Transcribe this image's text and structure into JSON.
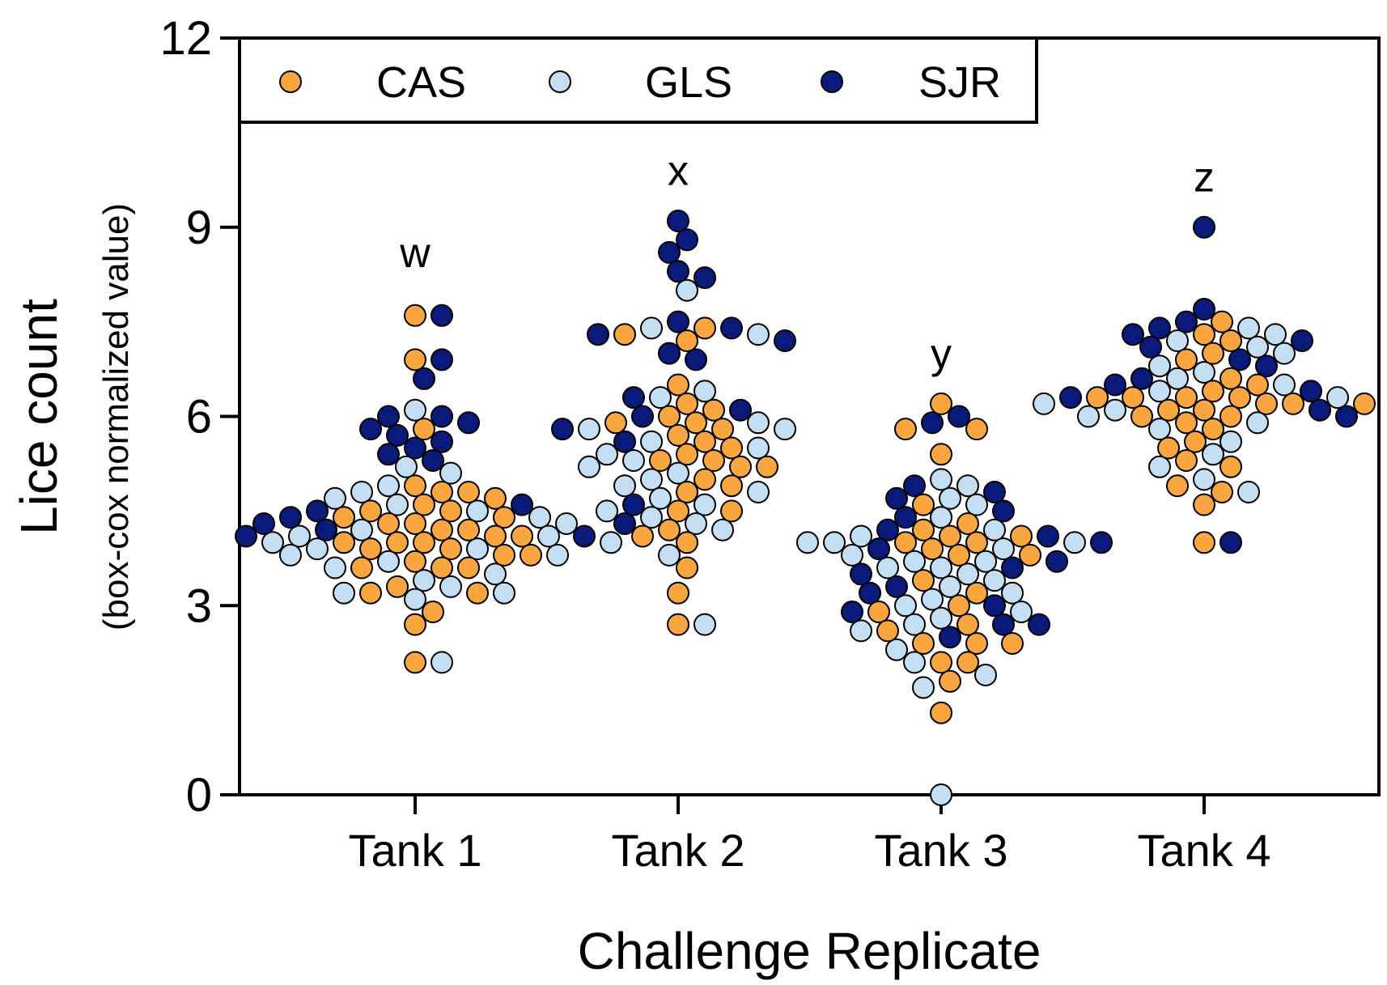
{
  "chart_data": {
    "type": "scatter",
    "subtype": "beeswarm",
    "title": "",
    "xlabel": "Challenge Replicate",
    "ylabel": "Lice count",
    "ylabel_sub": "(box-cox normalized value)",
    "ylim": [
      0,
      12
    ],
    "yticks": [
      0,
      3,
      6,
      9,
      12
    ],
    "categories": [
      "Tank 1",
      "Tank 2",
      "Tank 3",
      "Tank 4"
    ],
    "legend": {
      "placement": "top-left"
    },
    "annotations": [
      {
        "category": "Tank 1",
        "text": "w",
        "y": 8.6
      },
      {
        "category": "Tank 2",
        "text": "x",
        "y": 9.9
      },
      {
        "category": "Tank 3",
        "text": "y",
        "y": 7.0
      },
      {
        "category": "Tank 4",
        "text": "z",
        "y": 9.8
      }
    ],
    "series": [
      {
        "name": "CAS",
        "color": "#F9A640",
        "values": [
          [
            7.6,
            6.9,
            5.8,
            4.9,
            4.8,
            4.8,
            4.7,
            4.6,
            4.5,
            4.5,
            4.4,
            4.4,
            4.3,
            4.3,
            4.2,
            4.2,
            4.1,
            4.1,
            4.0,
            4.0,
            4.0,
            3.9,
            3.9,
            3.8,
            3.8,
            3.7,
            3.6,
            3.6,
            3.6,
            3.3,
            3.2,
            3.2,
            2.9,
            2.7,
            2.1
          ],
          [
            7.4,
            7.3,
            7.2,
            6.5,
            6.2,
            6.1,
            6.0,
            5.9,
            5.9,
            5.8,
            5.7,
            5.6,
            5.5,
            5.4,
            5.3,
            5.3,
            5.2,
            5.2,
            5.0,
            4.9,
            4.8,
            4.5,
            4.5,
            4.2,
            4.1,
            4.0,
            3.6,
            3.2,
            2.7
          ],
          [
            6.2,
            5.8,
            5.8,
            5.4,
            4.6,
            4.3,
            4.2,
            4.1,
            4.1,
            4.0,
            4.0,
            3.9,
            3.8,
            3.8,
            3.4,
            3.2,
            3.0,
            2.9,
            2.7,
            2.6,
            2.4,
            2.4,
            2.4,
            2.1,
            2.1,
            1.8,
            1.3
          ],
          [
            7.5,
            7.3,
            7.2,
            7.0,
            6.9,
            6.6,
            6.5,
            6.4,
            6.3,
            6.3,
            6.3,
            6.3,
            6.2,
            6.2,
            6.2,
            6.1,
            6.1,
            6.0,
            6.0,
            5.9,
            5.8,
            5.6,
            5.5,
            5.3,
            5.2,
            4.9,
            4.8,
            4.6,
            4.0
          ]
        ]
      },
      {
        "name": "GLS",
        "color": "#C4DEF3",
        "values": [
          [
            6.1,
            5.2,
            5.1,
            4.9,
            4.8,
            4.7,
            4.6,
            4.5,
            4.4,
            4.3,
            4.2,
            4.1,
            4.1,
            4.0,
            4.0,
            3.9,
            3.9,
            3.8,
            3.8,
            3.7,
            3.6,
            3.5,
            3.4,
            3.3,
            3.2,
            3.2,
            3.1,
            2.1
          ],
          [
            8.0,
            7.4,
            7.3,
            6.4,
            6.3,
            5.9,
            5.8,
            5.8,
            5.6,
            5.5,
            5.4,
            5.3,
            5.2,
            5.1,
            5.0,
            4.9,
            4.8,
            4.7,
            4.6,
            4.5,
            4.4,
            4.3,
            4.2,
            3.8,
            2.7
          ],
          [
            5.0,
            4.9,
            4.7,
            4.6,
            4.4,
            4.2,
            4.1,
            4.0,
            4.0,
            4.0,
            3.9,
            3.8,
            3.7,
            3.7,
            3.6,
            3.6,
            3.5,
            3.4,
            3.3,
            3.2,
            3.1,
            3.0,
            2.9,
            2.8,
            2.7,
            2.6,
            2.3,
            2.1,
            1.9,
            1.7,
            0.0
          ],
          [
            7.4,
            7.3,
            7.2,
            7.1,
            7.0,
            6.8,
            6.7,
            6.6,
            6.5,
            6.4,
            6.3,
            6.2,
            6.1,
            6.0,
            5.9,
            5.8,
            5.6,
            5.4,
            5.2,
            5.0,
            4.8
          ]
        ]
      },
      {
        "name": "SJR",
        "color": "#0A1A7A",
        "values": [
          [
            7.6,
            6.9,
            6.6,
            6.0,
            6.0,
            5.9,
            5.8,
            5.7,
            5.6,
            5.5,
            5.4,
            5.3,
            4.6,
            4.5,
            4.4,
            4.3,
            4.2,
            4.1,
            4.1
          ],
          [
            9.1,
            8.8,
            8.6,
            8.3,
            8.2,
            7.5,
            7.4,
            7.3,
            7.2,
            7.0,
            6.9,
            6.3,
            6.1,
            6.0,
            5.8,
            5.6,
            4.6,
            4.3
          ],
          [
            6.0,
            5.9,
            4.9,
            4.8,
            4.7,
            4.5,
            4.4,
            4.2,
            4.1,
            4.0,
            3.9,
            3.7,
            3.6,
            3.5,
            3.3,
            3.2,
            3.0,
            2.9,
            2.7,
            2.7,
            2.5
          ],
          [
            9.0,
            7.7,
            7.5,
            7.4,
            7.3,
            7.2,
            7.1,
            6.9,
            6.8,
            6.6,
            6.5,
            6.4,
            6.3,
            6.1,
            6.0,
            4.0
          ]
        ]
      }
    ]
  }
}
